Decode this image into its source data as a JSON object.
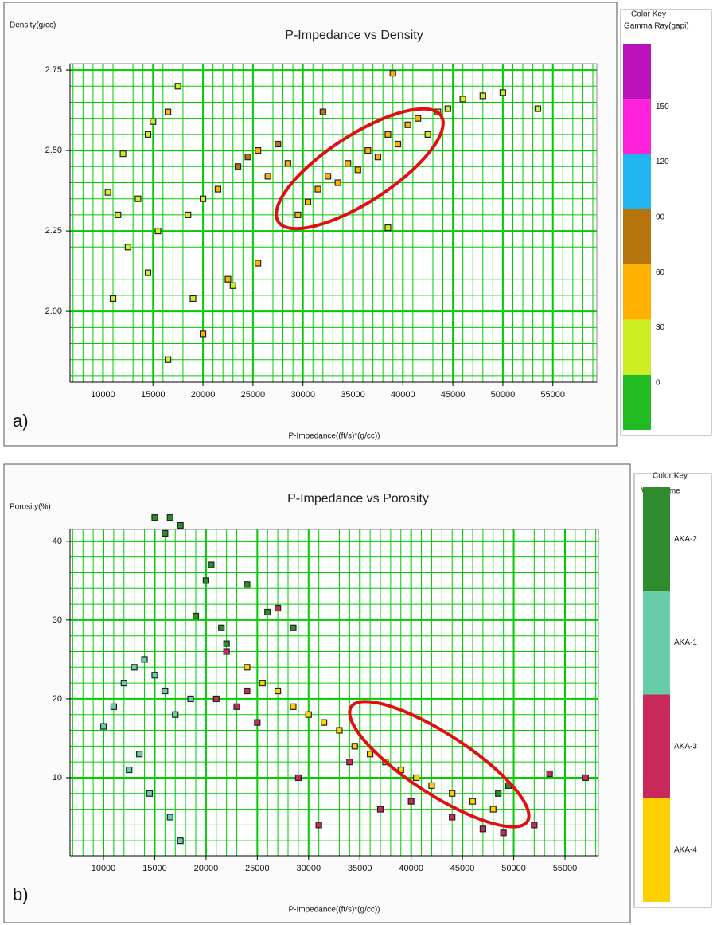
{
  "chart_data": [
    {
      "type": "scatter",
      "title": "P-Impedance vs Density",
      "x_label": "P-Impedance((ft/s)*(g/cc))",
      "y_label": "Density(g/cc)",
      "panel_label": "a)",
      "xlim": [
        6700,
        59400
      ],
      "ylim": [
        1.78,
        2.77
      ],
      "xticks": [
        10000,
        15000,
        20000,
        25000,
        30000,
        35000,
        40000,
        45000,
        50000,
        55000
      ],
      "yticks": [
        {
          "value": 2,
          "label": "2.00"
        },
        2.25,
        {
          "value": 2.5,
          "label": "2.50"
        },
        2.75
      ],
      "grid": true,
      "grid_color": "#00cc00",
      "grid_minor": {
        "x": 1000,
        "y": 0.05
      },
      "x": [
        10500,
        11500,
        12500,
        13500,
        14500,
        15000,
        15500,
        16500,
        17500,
        12000,
        18500,
        20000,
        21500,
        22500,
        23500,
        24500,
        25500,
        26500,
        27500,
        28500,
        29500,
        30500,
        31500,
        32500,
        33500,
        34500,
        35500,
        36500,
        37500,
        38500,
        39500,
        40500,
        41500,
        42500,
        43500,
        44500,
        46000,
        48000,
        50000,
        53500,
        11000,
        16500,
        20000,
        39000,
        23000,
        19000,
        38500,
        14500,
        25500,
        32000
      ],
      "values": [
        2.37,
        2.3,
        2.2,
        2.35,
        2.55,
        2.59,
        2.25,
        2.62,
        2.7,
        2.49,
        2.3,
        2.35,
        2.38,
        2.1,
        2.45,
        2.48,
        2.5,
        2.42,
        2.52,
        2.46,
        2.3,
        2.34,
        2.38,
        2.42,
        2.4,
        2.46,
        2.44,
        2.5,
        2.48,
        2.55,
        2.52,
        2.58,
        2.6,
        2.55,
        2.62,
        2.63,
        2.66,
        2.67,
        2.68,
        2.63,
        2.04,
        1.85,
        1.93,
        2.74,
        2.08,
        2.04,
        2.26,
        2.12,
        2.15,
        2.62
      ],
      "color_values": [
        20,
        15,
        10,
        25,
        15,
        20,
        10,
        30,
        25,
        12,
        15,
        20,
        35,
        45,
        70,
        65,
        55,
        40,
        70,
        50,
        30,
        40,
        45,
        50,
        35,
        45,
        40,
        55,
        30,
        45,
        35,
        40,
        30,
        25,
        20,
        15,
        25,
        20,
        15,
        20,
        15,
        20,
        30,
        45,
        10,
        15,
        25,
        10,
        35,
        60
      ],
      "color_key": {
        "title": "Color Key",
        "label": "Gamma Ray(gapi)",
        "range": [
          -30,
          180
        ],
        "ticks": [
          0,
          30,
          60,
          90,
          120,
          150
        ],
        "colors": [
          "#22bb22",
          "#ccee22",
          "#ffb000",
          "#b8740c",
          "#22b4ee",
          "#ff22dd",
          "#bb11bb"
        ]
      }
    },
    {
      "type": "scatter",
      "title": "P-Impedance vs Porosity",
      "x_label": "P-Impedance((ft/s)*(g/cc))",
      "y_label": "Porosity(%)",
      "panel_label": "b)",
      "xlim": [
        6740,
        58260
      ],
      "ylim": [
        0.1,
        41.5
      ],
      "xticks": [
        10000,
        15000,
        20000,
        25000,
        30000,
        35000,
        40000,
        45000,
        50000,
        55000
      ],
      "yticks": [
        10,
        20,
        30,
        40
      ],
      "grid": true,
      "grid_color": "#00cc00",
      "grid_minor": {
        "x": 1000,
        "y": 2
      },
      "key_title": "Color Key",
      "key_label": "Well Name",
      "series": [
        {
          "name": "AKA-2",
          "color": "#2e8b2e",
          "x": [
            15000,
            16000,
            17500,
            19000,
            20000,
            20500,
            21500,
            22000,
            24000,
            26000,
            28500,
            48500,
            49500,
            16500
          ],
          "values": [
            43,
            41,
            42,
            30.5,
            35,
            37,
            29,
            27,
            34.5,
            31,
            29,
            8,
            9,
            43
          ]
        },
        {
          "name": "AKA-1",
          "color": "#66ccaa",
          "x": [
            10000,
            11000,
            12000,
            13000,
            14000,
            15000,
            16000,
            17000,
            17500,
            12500,
            14500,
            16500,
            13500,
            18500
          ],
          "values": [
            16.5,
            19,
            22,
            24,
            25,
            23,
            21,
            18,
            2,
            11,
            8,
            5,
            13,
            20
          ]
        },
        {
          "name": "AKA-3",
          "color": "#c8285a",
          "x": [
            21000,
            22000,
            23000,
            24000,
            25000,
            27000,
            29000,
            31000,
            34000,
            37000,
            40000,
            44000,
            47000,
            49000,
            52000,
            53500,
            57000
          ],
          "values": [
            20,
            26,
            19,
            21,
            17,
            31.5,
            10,
            4,
            12,
            6,
            7,
            5,
            3.5,
            3,
            4,
            10.5,
            10
          ]
        },
        {
          "name": "AKA-4",
          "color": "#ffd000",
          "x": [
            24000,
            25500,
            27000,
            28500,
            30000,
            31500,
            33000,
            34500,
            36000,
            37500,
            39000,
            40500,
            42000,
            44000,
            46000,
            48000
          ],
          "values": [
            24,
            22,
            21,
            19,
            18,
            17,
            16,
            14,
            13,
            12,
            11,
            10,
            9,
            8,
            7,
            6
          ]
        }
      ]
    }
  ]
}
